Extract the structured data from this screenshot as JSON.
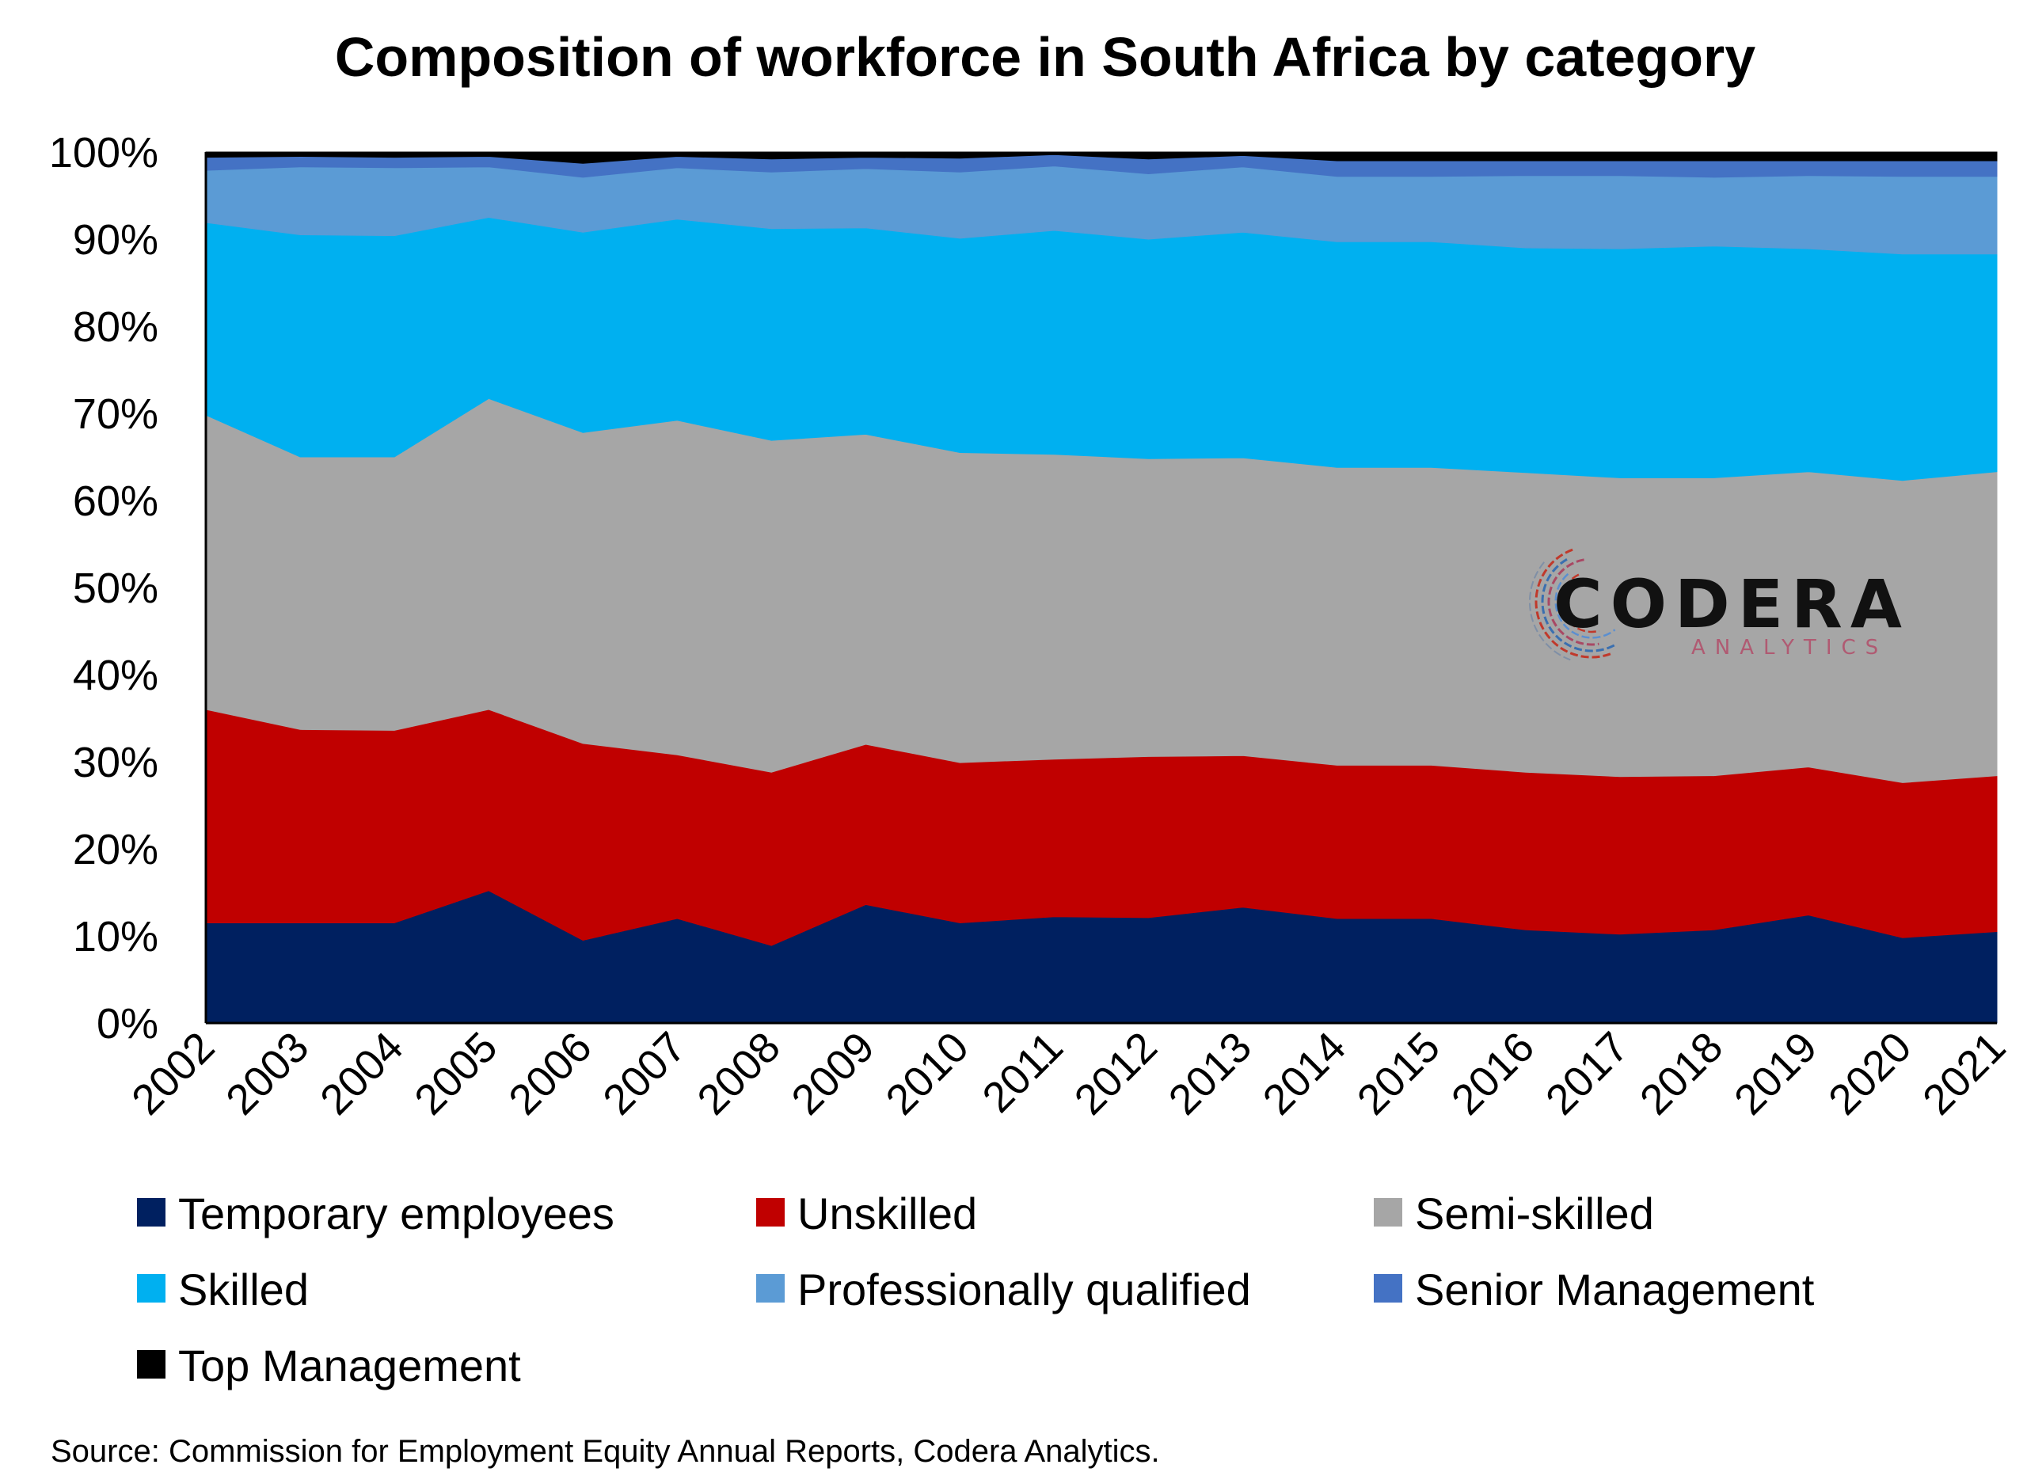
{
  "chart_data": {
    "type": "area",
    "stacked": true,
    "percent": true,
    "title": "Composition of workforce in South Africa by category",
    "x": [
      "2002",
      "2003",
      "2004",
      "2005",
      "2006",
      "2007",
      "2008",
      "2009",
      "2010",
      "2011",
      "2012",
      "2013",
      "2014",
      "2015",
      "2016",
      "2017",
      "2018",
      "2019",
      "2020",
      "2021"
    ],
    "ylim": [
      0,
      100
    ],
    "yticks": [
      "0%",
      "10%",
      "20%",
      "30%",
      "40%",
      "50%",
      "60%",
      "70%",
      "80%",
      "90%",
      "100%"
    ],
    "grid": false,
    "legend_position": "bottom",
    "series": [
      {
        "name": "Temporary employees",
        "color": "#002060",
        "values": [
          11.5,
          11.5,
          11.5,
          15.2,
          9.5,
          12.0,
          8.9,
          13.6,
          11.5,
          12.2,
          12.1,
          13.3,
          12.0,
          12.0,
          10.7,
          10.2,
          10.7,
          12.4,
          9.8,
          10.5
        ]
      },
      {
        "name": "Unskilled",
        "color": "#C00000",
        "values": [
          24.5,
          22.2,
          22.1,
          20.8,
          22.6,
          18.8,
          19.9,
          18.4,
          18.4,
          18.1,
          18.5,
          17.4,
          17.6,
          17.6,
          18.1,
          18.1,
          17.7,
          17.0,
          17.8,
          17.9
        ]
      },
      {
        "name": "Semi-skilled",
        "color": "#A6A6A6",
        "values": [
          33.8,
          31.3,
          31.4,
          35.7,
          35.7,
          38.4,
          38.1,
          35.6,
          35.6,
          35.0,
          34.2,
          34.2,
          34.2,
          34.2,
          34.4,
          34.3,
          34.2,
          33.9,
          34.7,
          34.9
        ]
      },
      {
        "name": "Skilled",
        "color": "#00B0F0",
        "values": [
          22.1,
          25.5,
          25.4,
          20.8,
          23.0,
          23.1,
          24.3,
          23.7,
          24.6,
          25.7,
          25.2,
          25.9,
          25.9,
          25.9,
          25.8,
          26.3,
          26.6,
          25.6,
          26.0,
          25.0
        ]
      },
      {
        "name": "Professionally qualified",
        "color": "#5B9BD5",
        "values": [
          6.0,
          7.8,
          7.8,
          5.8,
          6.3,
          5.9,
          6.5,
          6.8,
          7.6,
          7.4,
          7.5,
          7.5,
          7.5,
          7.5,
          8.3,
          8.4,
          7.9,
          8.4,
          8.9,
          8.9
        ]
      },
      {
        "name": "Senior Management",
        "color": "#4472C4",
        "values": [
          1.5,
          1.2,
          1.2,
          1.2,
          1.6,
          1.3,
          1.5,
          1.3,
          1.6,
          1.3,
          1.7,
          1.3,
          1.8,
          1.8,
          1.7,
          1.7,
          1.9,
          1.7,
          1.8,
          1.8
        ]
      },
      {
        "name": "Top Management",
        "color": "#000000",
        "values": [
          0.6,
          0.5,
          0.6,
          0.5,
          1.3,
          0.5,
          0.8,
          0.6,
          0.7,
          0.3,
          0.8,
          0.4,
          1.0,
          1.0,
          1.0,
          1.0,
          1.0,
          1.0,
          1.0,
          1.0
        ]
      }
    ],
    "source": "Source: Commission for Employment Equity Annual Reports, Codera Analytics."
  },
  "logo": {
    "name": "CODERA",
    "tagline": "ANALYTICS"
  }
}
